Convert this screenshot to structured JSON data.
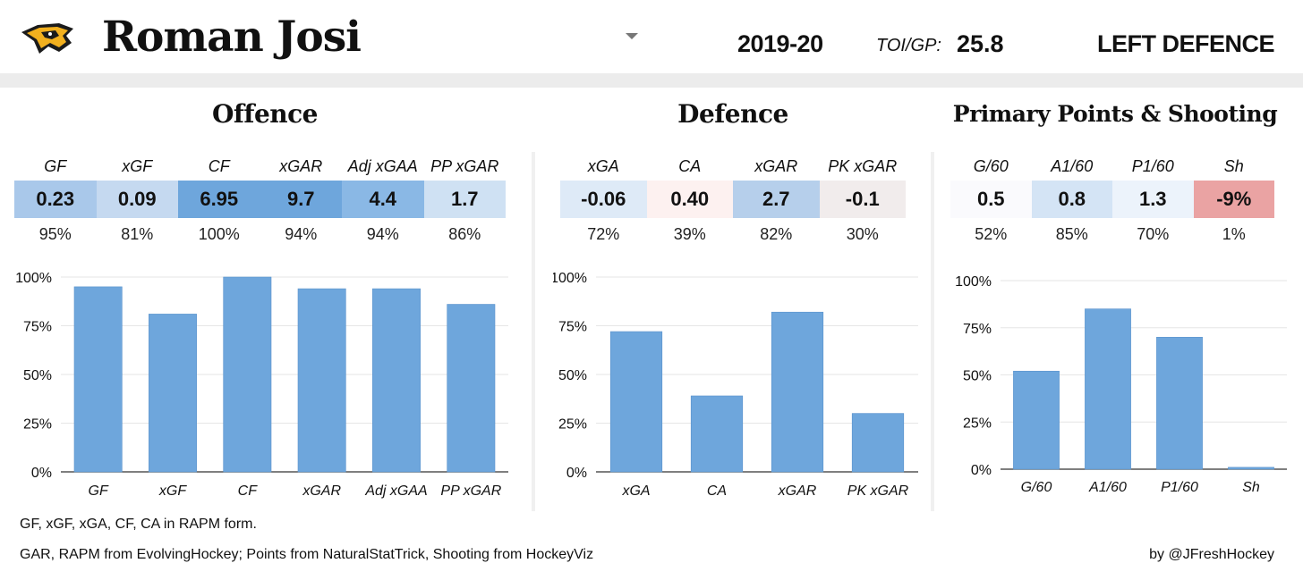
{
  "header": {
    "player_name": "Roman Josi",
    "season": "2019-20",
    "toi_label": "TOI/GP:",
    "toi_value": "25.8",
    "position": "LEFT DEFENCE"
  },
  "sections": [
    {
      "title": "Offence",
      "stats": [
        {
          "label": "GF",
          "value": "0.23",
          "pct": "95%",
          "color": "#a9c8ea"
        },
        {
          "label": "xGF",
          "value": "0.09",
          "pct": "81%",
          "color": "#c5d9f0"
        },
        {
          "label": "CF",
          "value": "6.95",
          "pct": "100%",
          "color": "#6ea6dc"
        },
        {
          "label": "xGAR",
          "value": "9.7",
          "pct": "94%",
          "color": "#6ea6dc"
        },
        {
          "label": "Adj xGAA",
          "value": "4.4",
          "pct": "94%",
          "color": "#8ab8e5"
        },
        {
          "label": "PP xGAR",
          "value": "1.7",
          "pct": "86%",
          "color": "#cfe1f3"
        }
      ]
    },
    {
      "title": "Defence",
      "stats": [
        {
          "label": "xGA",
          "value": "-0.06",
          "pct": "72%",
          "color": "#deeaf7"
        },
        {
          "label": "CA",
          "value": "0.40",
          "pct": "39%",
          "color": "#fdf1f0"
        },
        {
          "label": "xGAR",
          "value": "2.7",
          "pct": "82%",
          "color": "#b6cfeb"
        },
        {
          "label": "PK xGAR",
          "value": "-0.1",
          "pct": "30%",
          "color": "#f1ecec"
        }
      ]
    },
    {
      "title": "Primary Points & Shooting",
      "stats": [
        {
          "label": "G/60",
          "value": "0.5",
          "pct": "52%",
          "color": "#fafafd"
        },
        {
          "label": "A1/60",
          "value": "0.8",
          "pct": "85%",
          "color": "#d4e4f5"
        },
        {
          "label": "P1/60",
          "value": "1.3",
          "pct": "70%",
          "color": "#ecf3fb"
        },
        {
          "label": "Sh",
          "value": "-9%",
          "pct": "1%",
          "color": "#eaa3a3"
        }
      ]
    }
  ],
  "chart_data": [
    {
      "type": "bar",
      "categories": [
        "GF",
        "xGF",
        "CF",
        "xGAR",
        "Adj xGAA",
        "PP xGAR"
      ],
      "values": [
        95,
        81,
        100,
        94,
        94,
        86
      ],
      "ylim": [
        0,
        100
      ],
      "yticks": [
        "0%",
        "25%",
        "50%",
        "75%",
        "100%"
      ],
      "bar_color": "#6ea6dc"
    },
    {
      "type": "bar",
      "categories": [
        "xGA",
        "CA",
        "xGAR",
        "PK xGAR"
      ],
      "values": [
        72,
        39,
        82,
        30
      ],
      "ylim": [
        0,
        100
      ],
      "yticks": [
        "0%",
        "25%",
        "50%",
        "75%",
        "100%"
      ],
      "bar_color": "#6ea6dc"
    },
    {
      "type": "bar",
      "categories": [
        "G/60",
        "A1/60",
        "P1/60",
        "Sh"
      ],
      "values": [
        52,
        85,
        70,
        1
      ],
      "ylim": [
        0,
        100
      ],
      "yticks": [
        "0%",
        "25%",
        "50%",
        "75%",
        "100%"
      ],
      "bar_color": "#6ea6dc"
    }
  ],
  "footer": {
    "note1": "GF, xGF, xGA, CF, CA in RAPM form.",
    "note2": "GAR, RAPM from EvolvingHockey; Points from NaturalStatTrick, Shooting from HockeyViz",
    "credit": "by @JFreshHockey"
  },
  "logo": {
    "icon": "predators-logo-icon"
  }
}
